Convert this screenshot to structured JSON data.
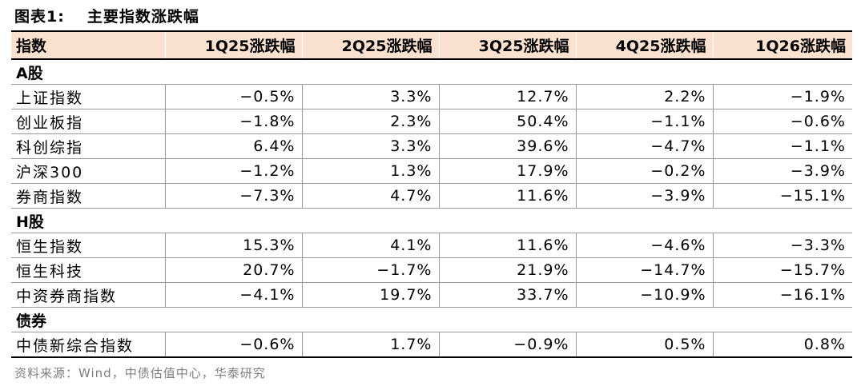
{
  "title": {
    "label": "图表1:",
    "text": "主要指数涨跌幅"
  },
  "header": [
    "指数",
    "1Q25涨跌幅",
    "2Q25涨跌幅",
    "3Q25涨跌幅",
    "4Q25涨跌幅",
    "1Q26涨跌幅"
  ],
  "sections": [
    {
      "name": "A股",
      "rows": [
        {
          "name": "上证指数",
          "values": [
            "−0.5%",
            "3.3%",
            "12.7%",
            "2.2%",
            "−1.9%"
          ]
        },
        {
          "name": "创业板指",
          "values": [
            "−1.8%",
            "2.3%",
            "50.4%",
            "−1.1%",
            "−0.6%"
          ]
        },
        {
          "name": "科创综指",
          "values": [
            "6.4%",
            "3.3%",
            "39.6%",
            "−4.7%",
            "−1.1%"
          ]
        },
        {
          "name": "沪深300",
          "values": [
            "−1.2%",
            "1.3%",
            "17.9%",
            "−0.2%",
            "−3.9%"
          ]
        },
        {
          "name": "券商指数",
          "values": [
            "−7.3%",
            "4.7%",
            "11.6%",
            "−3.9%",
            "−15.1%"
          ]
        }
      ]
    },
    {
      "name": "H股",
      "rows": [
        {
          "name": "恒生指数",
          "values": [
            "15.3%",
            "4.1%",
            "11.6%",
            "−4.6%",
            "−3.3%"
          ]
        },
        {
          "name": "恒生科技",
          "values": [
            "20.7%",
            "−1.7%",
            "21.9%",
            "−14.7%",
            "−15.7%"
          ]
        },
        {
          "name": "中资券商指数",
          "values": [
            "−4.1%",
            "19.7%",
            "33.7%",
            "−10.9%",
            "−16.1%"
          ]
        }
      ]
    },
    {
      "name": "债券",
      "rows": [
        {
          "name": "中债新综合指数",
          "values": [
            "−0.6%",
            "1.7%",
            "−0.9%",
            "0.5%",
            "0.8%"
          ]
        }
      ]
    }
  ],
  "source": "资料来源：Wind，中债估值中心，华泰研究"
}
